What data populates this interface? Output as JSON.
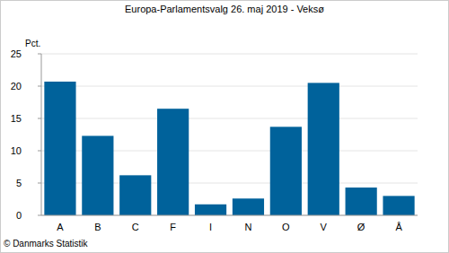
{
  "chart_data": {
    "type": "bar",
    "title": "Europa-Parlamentsvalg 26. maj 2019 - Veksø",
    "y_label": "Pct.",
    "source": "© Danmarks Statistik",
    "categories": [
      "A",
      "B",
      "C",
      "F",
      "I",
      "N",
      "O",
      "V",
      "Ø",
      "Å"
    ],
    "values": [
      20.7,
      12.3,
      6.2,
      16.5,
      1.7,
      2.6,
      13.7,
      20.5,
      4.3,
      3.0
    ],
    "color": "#00629b",
    "ylim": [
      0,
      25
    ],
    "yticks": [
      0,
      5,
      10,
      15,
      20,
      25
    ],
    "grid": true
  }
}
